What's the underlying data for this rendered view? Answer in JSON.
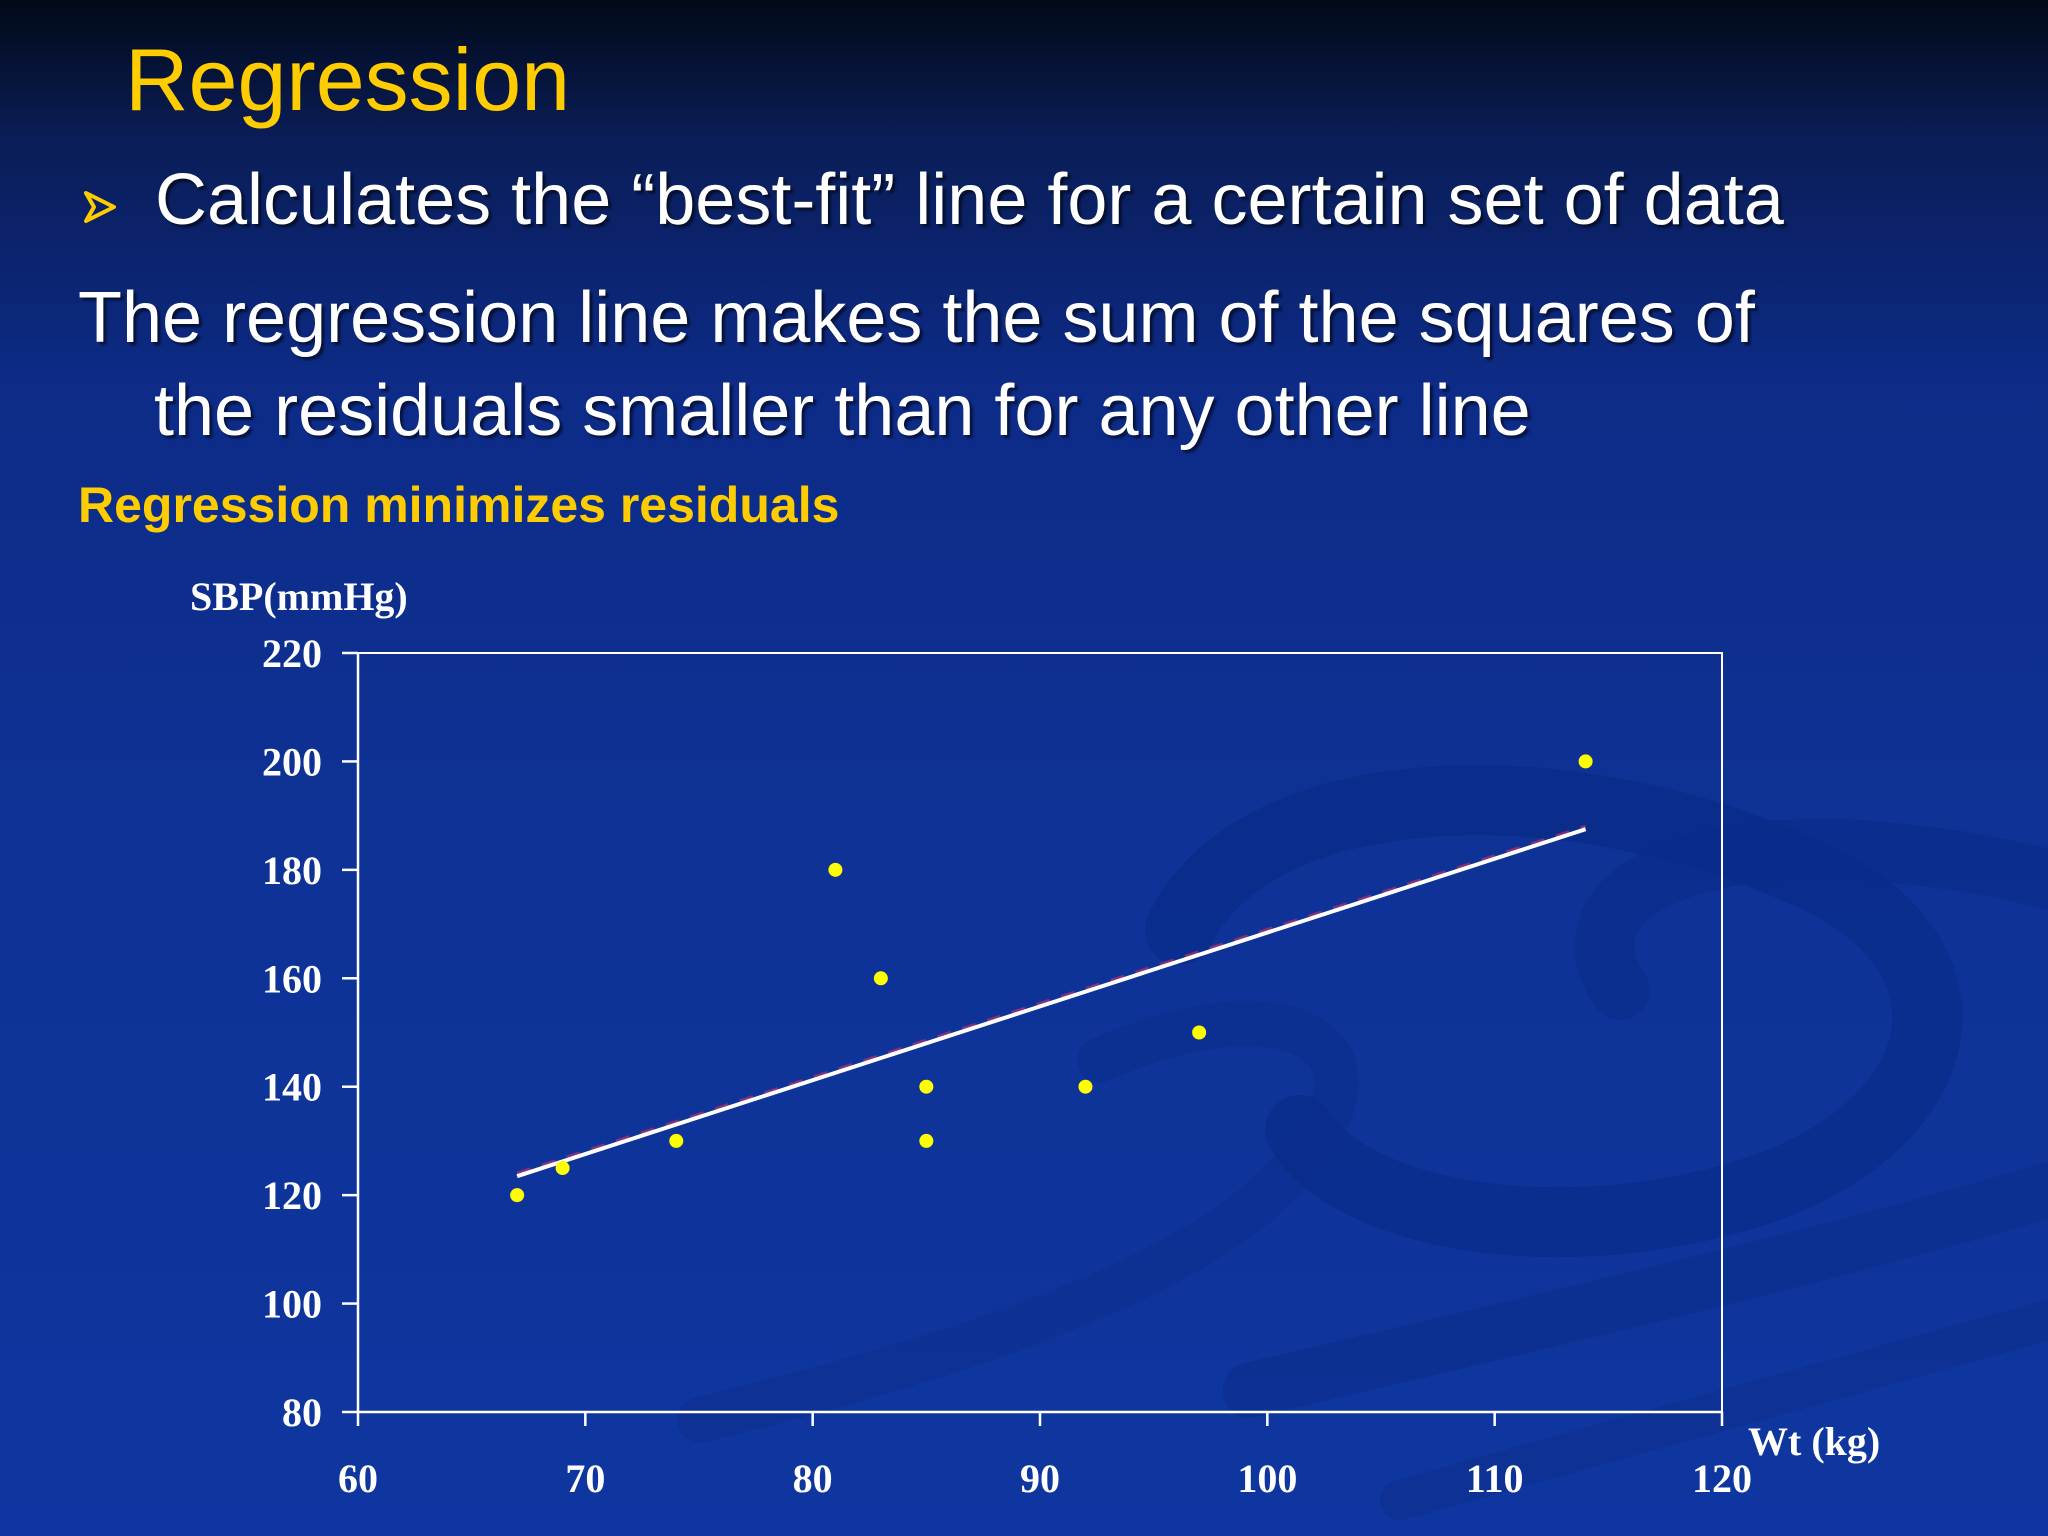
{
  "slide": {
    "title": "Regression",
    "bullet": "Calculates the “best-fit” line for a certain set of data",
    "paragraph_line1": "The regression line makes the sum of the squares of",
    "paragraph_line2": "the residuals smaller than for any other line",
    "subheading": "Regression minimizes residuals"
  },
  "colors": {
    "title": "#ffcc00",
    "text": "#ffffff",
    "points": "#ffff00",
    "fit_line": "#ffffff"
  },
  "chart_data": {
    "type": "scatter",
    "xlabel": "Wt (kg)",
    "ylabel": "SBP(mmHg)",
    "xlim": [
      60,
      120
    ],
    "ylim": [
      80,
      220
    ],
    "xticks": [
      60,
      70,
      80,
      90,
      100,
      110,
      120
    ],
    "yticks": [
      80,
      100,
      120,
      140,
      160,
      180,
      200,
      220
    ],
    "grid": false,
    "points": [
      {
        "x": 67,
        "y": 120
      },
      {
        "x": 69,
        "y": 125
      },
      {
        "x": 74,
        "y": 130
      },
      {
        "x": 81,
        "y": 180
      },
      {
        "x": 83,
        "y": 160
      },
      {
        "x": 85,
        "y": 140
      },
      {
        "x": 85,
        "y": 130
      },
      {
        "x": 92,
        "y": 140
      },
      {
        "x": 97,
        "y": 150
      },
      {
        "x": 114,
        "y": 200
      }
    ],
    "fit_line": {
      "x": [
        67,
        114
      ],
      "y": [
        123.5,
        187.5
      ]
    }
  }
}
